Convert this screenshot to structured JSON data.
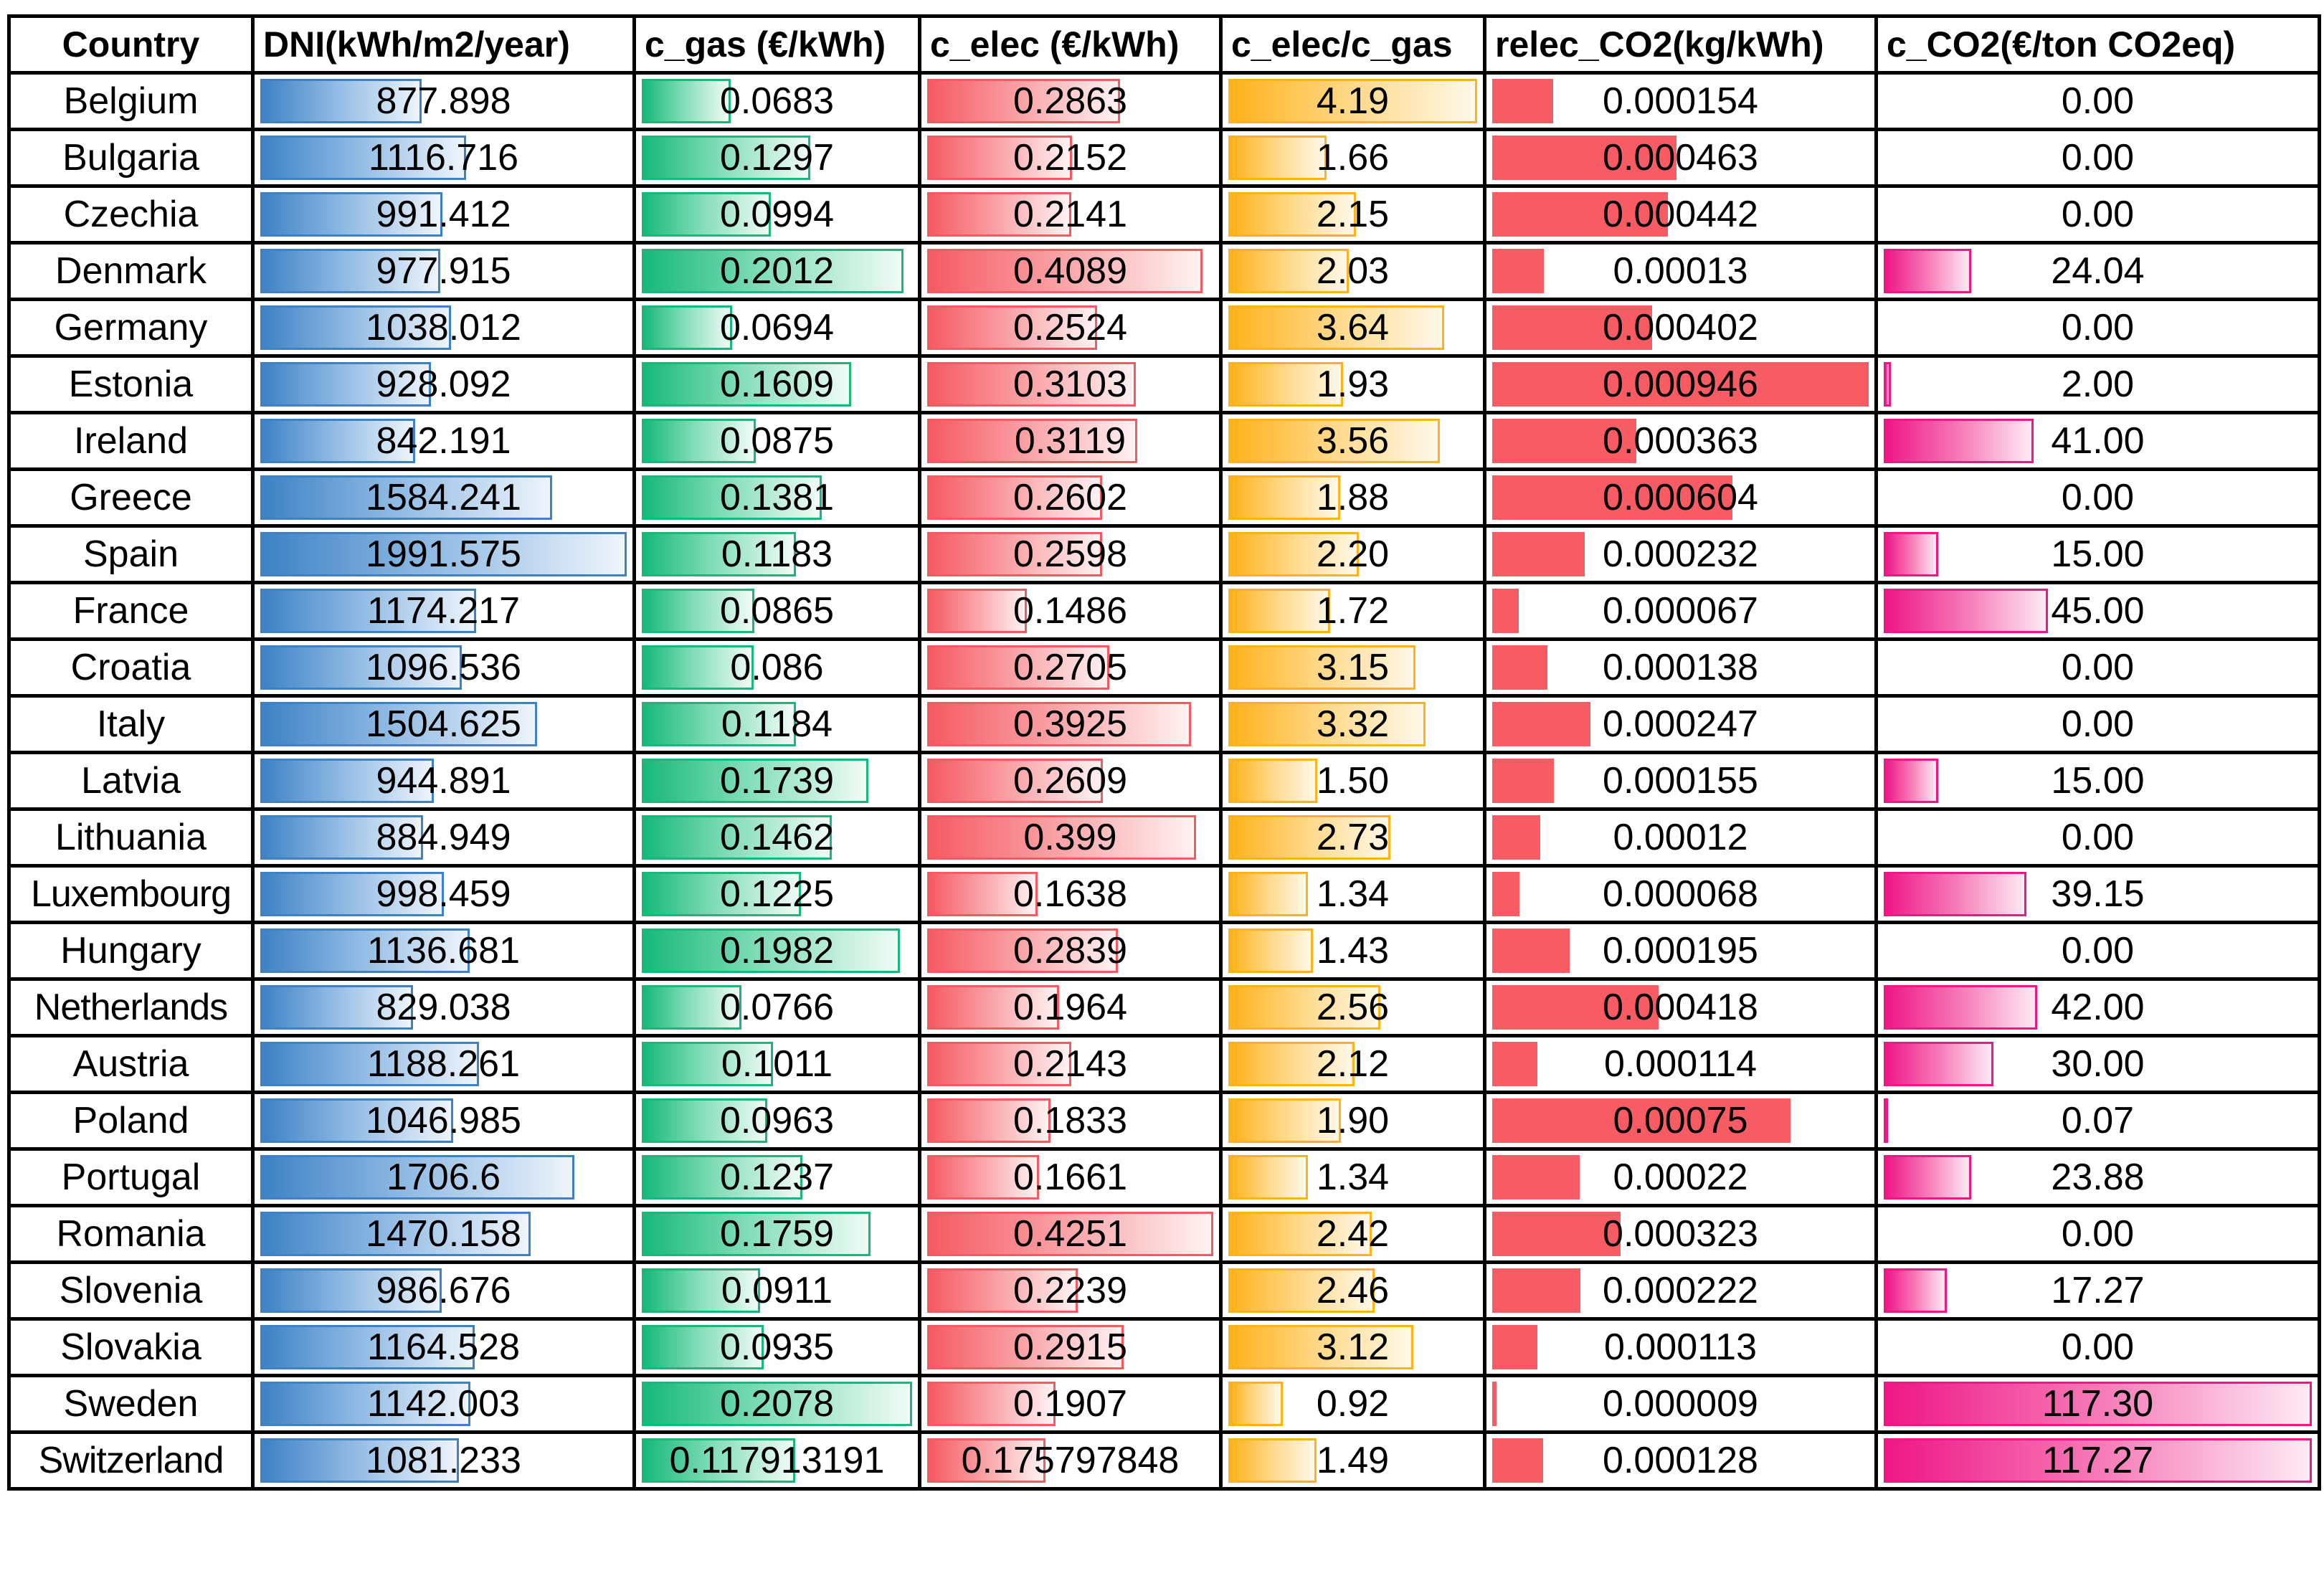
{
  "headers": {
    "country": "Country",
    "dni": "DNI(kWh/m2/year)",
    "c_gas": "c_gas (€/kWh)",
    "c_elec": "c_elec (€/kWh)",
    "ratio": "c_elec/c_gas",
    "relec": "relec_CO2(kg/kWh)",
    "c_co2": "c_CO2(€/ton CO2eq)"
  },
  "bar_colors": {
    "dni": "#3d82c5",
    "c_gas": "#17b87a",
    "c_elec": "#f55a62",
    "ratio": "#ffb21a",
    "relec": "#f75b63",
    "c_co2": "#ee1786"
  },
  "bar_scale_max": {
    "dni": 1991.575,
    "c_gas": 0.2078,
    "c_elec": 0.4251,
    "ratio": 4.19,
    "relec": 0.000946,
    "c_co2": 117.3
  },
  "rows": [
    {
      "country": "Belgium",
      "dni": "877.898",
      "c_gas": "0.0683",
      "c_elec": "0.2863",
      "ratio": "4.19",
      "relec": "0.000154",
      "c_co2": "0.00"
    },
    {
      "country": "Bulgaria",
      "dni": "1116.716",
      "c_gas": "0.1297",
      "c_elec": "0.2152",
      "ratio": "1.66",
      "relec": "0.000463",
      "c_co2": "0.00"
    },
    {
      "country": "Czechia",
      "dni": "991.412",
      "c_gas": "0.0994",
      "c_elec": "0.2141",
      "ratio": "2.15",
      "relec": "0.000442",
      "c_co2": "0.00"
    },
    {
      "country": "Denmark",
      "dni": "977.915",
      "c_gas": "0.2012",
      "c_elec": "0.4089",
      "ratio": "2.03",
      "relec": "0.00013",
      "c_co2": "24.04"
    },
    {
      "country": "Germany",
      "dni": "1038.012",
      "c_gas": "0.0694",
      "c_elec": "0.2524",
      "ratio": "3.64",
      "relec": "0.000402",
      "c_co2": "0.00"
    },
    {
      "country": "Estonia",
      "dni": "928.092",
      "c_gas": "0.1609",
      "c_elec": "0.3103",
      "ratio": "1.93",
      "relec": "0.000946",
      "c_co2": "2.00"
    },
    {
      "country": "Ireland",
      "dni": "842.191",
      "c_gas": "0.0875",
      "c_elec": "0.3119",
      "ratio": "3.56",
      "relec": "0.000363",
      "c_co2": "41.00"
    },
    {
      "country": "Greece",
      "dni": "1584.241",
      "c_gas": "0.1381",
      "c_elec": "0.2602",
      "ratio": "1.88",
      "relec": "0.000604",
      "c_co2": "0.00"
    },
    {
      "country": "Spain",
      "dni": "1991.575",
      "c_gas": "0.1183",
      "c_elec": "0.2598",
      "ratio": "2.20",
      "relec": "0.000232",
      "c_co2": "15.00"
    },
    {
      "country": "France",
      "dni": "1174.217",
      "c_gas": "0.0865",
      "c_elec": "0.1486",
      "ratio": "1.72",
      "relec": "0.000067",
      "c_co2": "45.00"
    },
    {
      "country": "Croatia",
      "dni": "1096.536",
      "c_gas": "0.086",
      "c_elec": "0.2705",
      "ratio": "3.15",
      "relec": "0.000138",
      "c_co2": "0.00"
    },
    {
      "country": "Italy",
      "dni": "1504.625",
      "c_gas": "0.1184",
      "c_elec": "0.3925",
      "ratio": "3.32",
      "relec": "0.000247",
      "c_co2": "0.00"
    },
    {
      "country": "Latvia",
      "dni": "944.891",
      "c_gas": "0.1739",
      "c_elec": "0.2609",
      "ratio": "1.50",
      "relec": "0.000155",
      "c_co2": "15.00"
    },
    {
      "country": "Lithuania",
      "dni": "884.949",
      "c_gas": "0.1462",
      "c_elec": "0.399",
      "ratio": "2.73",
      "relec": "0.00012",
      "c_co2": "0.00"
    },
    {
      "country": "Luxembourg",
      "dni": "998.459",
      "c_gas": "0.1225",
      "c_elec": "0.1638",
      "ratio": "1.34",
      "relec": "0.000068",
      "c_co2": "39.15"
    },
    {
      "country": "Hungary",
      "dni": "1136.681",
      "c_gas": "0.1982",
      "c_elec": "0.2839",
      "ratio": "1.43",
      "relec": "0.000195",
      "c_co2": "0.00"
    },
    {
      "country": "Netherlands",
      "dni": "829.038",
      "c_gas": "0.0766",
      "c_elec": "0.1964",
      "ratio": "2.56",
      "relec": "0.000418",
      "c_co2": "42.00"
    },
    {
      "country": "Austria",
      "dni": "1188.261",
      "c_gas": "0.1011",
      "c_elec": "0.2143",
      "ratio": "2.12",
      "relec": "0.000114",
      "c_co2": "30.00"
    },
    {
      "country": "Poland",
      "dni": "1046.985",
      "c_gas": "0.0963",
      "c_elec": "0.1833",
      "ratio": "1.90",
      "relec": "0.00075",
      "c_co2": "0.07"
    },
    {
      "country": "Portugal",
      "dni": "1706.6",
      "c_gas": "0.1237",
      "c_elec": "0.1661",
      "ratio": "1.34",
      "relec": "0.00022",
      "c_co2": "23.88"
    },
    {
      "country": "Romania",
      "dni": "1470.158",
      "c_gas": "0.1759",
      "c_elec": "0.4251",
      "ratio": "2.42",
      "relec": "0.000323",
      "c_co2": "0.00"
    },
    {
      "country": "Slovenia",
      "dni": "986.676",
      "c_gas": "0.0911",
      "c_elec": "0.2239",
      "ratio": "2.46",
      "relec": "0.000222",
      "c_co2": "17.27"
    },
    {
      "country": "Slovakia",
      "dni": "1164.528",
      "c_gas": "0.0935",
      "c_elec": "0.2915",
      "ratio": "3.12",
      "relec": "0.000113",
      "c_co2": "0.00"
    },
    {
      "country": "Sweden",
      "dni": "1142.003",
      "c_gas": "0.2078",
      "c_elec": "0.1907",
      "ratio": "0.92",
      "relec": "0.000009",
      "c_co2": "117.30"
    },
    {
      "country": "Switzerland",
      "dni": "1081.233",
      "c_gas": "0.117913191",
      "c_elec": "0.175797848",
      "ratio": "1.49",
      "relec": "0.000128",
      "c_co2": "117.27"
    }
  ]
}
